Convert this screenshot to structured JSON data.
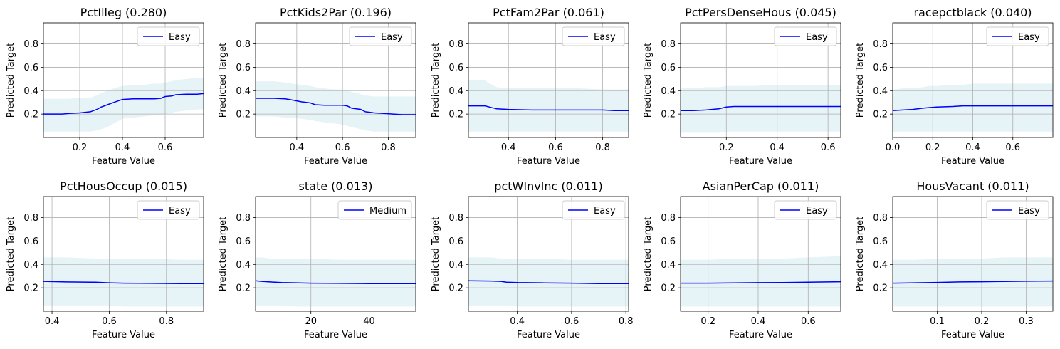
{
  "figure": {
    "ylabel": "Predicted Target",
    "xlabel": "Feature Value"
  },
  "chart_data": [
    {
      "type": "line",
      "title": "PctIlleg (0.280)",
      "xlabel": "Feature Value",
      "ylabel": "Predicted Target",
      "xlim": [
        0.03,
        0.78
      ],
      "ylim": [
        0.0,
        0.98
      ],
      "xticks": [
        0.2,
        0.4,
        0.6
      ],
      "xticklabels": [
        "0.2",
        "0.4",
        "0.6"
      ],
      "yticks": [
        0.2,
        0.4,
        0.6,
        0.8
      ],
      "yticklabels": [
        "0.2",
        "0.4",
        "0.6",
        "0.8"
      ],
      "grid": true,
      "legend_position": "upper right",
      "series": [
        {
          "name": "Easy",
          "color": "#0000ff",
          "x": [
            0.03,
            0.12,
            0.15,
            0.2,
            0.25,
            0.28,
            0.3,
            0.33,
            0.36,
            0.4,
            0.45,
            0.5,
            0.55,
            0.58,
            0.6,
            0.63,
            0.65,
            0.7,
            0.75,
            0.78
          ],
          "y": [
            0.2,
            0.2,
            0.205,
            0.21,
            0.22,
            0.24,
            0.26,
            0.28,
            0.3,
            0.325,
            0.33,
            0.33,
            0.33,
            0.335,
            0.35,
            0.355,
            0.365,
            0.37,
            0.37,
            0.375
          ]
        }
      ],
      "band": {
        "color": "#add8e6",
        "upper": [
          0.33,
          0.33,
          0.33,
          0.34,
          0.34,
          0.36,
          0.38,
          0.4,
          0.42,
          0.44,
          0.45,
          0.45,
          0.46,
          0.46,
          0.47,
          0.48,
          0.49,
          0.5,
          0.51,
          0.51
        ],
        "lower": [
          0.05,
          0.05,
          0.05,
          0.05,
          0.05,
          0.06,
          0.07,
          0.09,
          0.12,
          0.16,
          0.17,
          0.18,
          0.19,
          0.19,
          0.2,
          0.21,
          0.22,
          0.23,
          0.24,
          0.24
        ]
      }
    },
    {
      "type": "line",
      "title": "PctKids2Par (0.196)",
      "xlabel": "Feature Value",
      "ylabel": "Predicted Target",
      "xlim": [
        0.22,
        0.92
      ],
      "ylim": [
        0.0,
        0.98
      ],
      "xticks": [
        0.4,
        0.6,
        0.8
      ],
      "xticklabels": [
        "0.4",
        "0.6",
        "0.8"
      ],
      "yticks": [
        0.2,
        0.4,
        0.6,
        0.8
      ],
      "yticklabels": [
        "0.2",
        "0.4",
        "0.6",
        "0.8"
      ],
      "grid": true,
      "legend_position": "upper right",
      "series": [
        {
          "name": "Easy",
          "color": "#0000ff",
          "x": [
            0.22,
            0.3,
            0.35,
            0.38,
            0.42,
            0.46,
            0.48,
            0.52,
            0.56,
            0.6,
            0.62,
            0.64,
            0.66,
            0.68,
            0.7,
            0.74,
            0.78,
            0.82,
            0.86,
            0.92
          ],
          "y": [
            0.335,
            0.335,
            0.33,
            0.32,
            0.305,
            0.295,
            0.28,
            0.275,
            0.275,
            0.275,
            0.27,
            0.25,
            0.245,
            0.24,
            0.22,
            0.21,
            0.205,
            0.2,
            0.195,
            0.195
          ]
        }
      ],
      "band": {
        "color": "#add8e6",
        "upper": [
          0.48,
          0.48,
          0.47,
          0.46,
          0.45,
          0.44,
          0.43,
          0.42,
          0.41,
          0.41,
          0.4,
          0.39,
          0.38,
          0.37,
          0.36,
          0.35,
          0.35,
          0.35,
          0.35,
          0.35
        ],
        "lower": [
          0.18,
          0.18,
          0.17,
          0.17,
          0.16,
          0.15,
          0.14,
          0.13,
          0.12,
          0.11,
          0.1,
          0.09,
          0.08,
          0.07,
          0.06,
          0.05,
          0.05,
          0.05,
          0.05,
          0.05
        ]
      }
    },
    {
      "type": "line",
      "title": "PctFam2Par (0.061)",
      "xlabel": "Feature Value",
      "ylabel": "Predicted Target",
      "xlim": [
        0.23,
        0.91
      ],
      "ylim": [
        0.0,
        0.98
      ],
      "xticks": [
        0.4,
        0.6,
        0.8
      ],
      "xticklabels": [
        "0.4",
        "0.6",
        "0.8"
      ],
      "yticks": [
        0.2,
        0.4,
        0.6,
        0.8
      ],
      "yticklabels": [
        "0.2",
        "0.4",
        "0.6",
        "0.8"
      ],
      "grid": true,
      "legend_position": "upper right",
      "series": [
        {
          "name": "Easy",
          "color": "#0000ff",
          "x": [
            0.23,
            0.3,
            0.32,
            0.35,
            0.4,
            0.5,
            0.6,
            0.7,
            0.8,
            0.85,
            0.91
          ],
          "y": [
            0.27,
            0.27,
            0.26,
            0.245,
            0.24,
            0.235,
            0.235,
            0.235,
            0.235,
            0.23,
            0.23
          ]
        }
      ],
      "band": {
        "color": "#add8e6",
        "upper": [
          0.49,
          0.49,
          0.46,
          0.43,
          0.42,
          0.42,
          0.42,
          0.42,
          0.41,
          0.41,
          0.41
        ],
        "lower": [
          0.05,
          0.05,
          0.05,
          0.05,
          0.05,
          0.05,
          0.05,
          0.05,
          0.05,
          0.05,
          0.05
        ]
      }
    },
    {
      "type": "line",
      "title": "PctPersDenseHous (0.045)",
      "xlabel": "Feature Value",
      "ylabel": "Predicted Target",
      "xlim": [
        0.02,
        0.65
      ],
      "ylim": [
        0.0,
        0.98
      ],
      "xticks": [
        0.2,
        0.4,
        0.6
      ],
      "xticklabels": [
        "0.2",
        "0.4",
        "0.6"
      ],
      "yticks": [
        0.2,
        0.4,
        0.6,
        0.8
      ],
      "yticklabels": [
        "0.2",
        "0.4",
        "0.6",
        "0.8"
      ],
      "grid": true,
      "legend_position": "upper right",
      "series": [
        {
          "name": "Easy",
          "color": "#0000ff",
          "x": [
            0.02,
            0.07,
            0.12,
            0.17,
            0.2,
            0.23,
            0.3,
            0.4,
            0.5,
            0.6,
            0.65
          ],
          "y": [
            0.23,
            0.23,
            0.235,
            0.245,
            0.26,
            0.265,
            0.265,
            0.265,
            0.265,
            0.265,
            0.265
          ]
        }
      ],
      "band": {
        "color": "#add8e6",
        "upper": [
          0.42,
          0.42,
          0.43,
          0.43,
          0.44,
          0.44,
          0.44,
          0.45,
          0.45,
          0.45,
          0.45
        ],
        "lower": [
          0.04,
          0.04,
          0.04,
          0.04,
          0.05,
          0.05,
          0.05,
          0.05,
          0.05,
          0.05,
          0.05
        ]
      }
    },
    {
      "type": "line",
      "title": "racepctblack (0.040)",
      "xlabel": "Feature Value",
      "ylabel": "Predicted Target",
      "xlim": [
        0.0,
        0.8
      ],
      "ylim": [
        0.0,
        0.98
      ],
      "xticks": [
        0.0,
        0.2,
        0.4,
        0.6
      ],
      "xticklabels": [
        "0.0",
        "0.2",
        "0.4",
        "0.6"
      ],
      "yticks": [
        0.2,
        0.4,
        0.6,
        0.8
      ],
      "yticklabels": [
        "0.2",
        "0.4",
        "0.6",
        "0.8"
      ],
      "grid": true,
      "legend_position": "upper right",
      "series": [
        {
          "name": "Easy",
          "color": "#0000ff",
          "x": [
            0.0,
            0.05,
            0.1,
            0.15,
            0.18,
            0.22,
            0.3,
            0.35,
            0.4,
            0.5,
            0.6,
            0.7,
            0.8
          ],
          "y": [
            0.23,
            0.235,
            0.24,
            0.25,
            0.255,
            0.26,
            0.265,
            0.27,
            0.27,
            0.27,
            0.27,
            0.27,
            0.27
          ]
        }
      ],
      "band": {
        "color": "#add8e6",
        "upper": [
          0.41,
          0.42,
          0.42,
          0.43,
          0.44,
          0.44,
          0.45,
          0.45,
          0.46,
          0.46,
          0.46,
          0.46,
          0.46
        ],
        "lower": [
          0.05,
          0.05,
          0.05,
          0.05,
          0.05,
          0.05,
          0.05,
          0.05,
          0.05,
          0.05,
          0.05,
          0.05,
          0.05
        ]
      }
    },
    {
      "type": "line",
      "title": "PctHousOccup (0.015)",
      "xlabel": "Feature Value",
      "ylabel": "Predicted Target",
      "xlim": [
        0.37,
        0.93
      ],
      "ylim": [
        0.0,
        0.98
      ],
      "xticks": [
        0.4,
        0.6,
        0.8
      ],
      "xticklabels": [
        "0.4",
        "0.6",
        "0.8"
      ],
      "yticks": [
        0.2,
        0.4,
        0.6,
        0.8
      ],
      "yticklabels": [
        "0.2",
        "0.4",
        "0.6",
        "0.8"
      ],
      "grid": true,
      "legend_position": "upper right",
      "series": [
        {
          "name": "Easy",
          "color": "#0000ff",
          "x": [
            0.37,
            0.45,
            0.55,
            0.6,
            0.65,
            0.75,
            0.85,
            0.93
          ],
          "y": [
            0.255,
            0.25,
            0.248,
            0.243,
            0.24,
            0.238,
            0.236,
            0.236
          ]
        }
      ],
      "band": {
        "color": "#add8e6",
        "upper": [
          0.46,
          0.46,
          0.45,
          0.45,
          0.45,
          0.45,
          0.44,
          0.44
        ],
        "lower": [
          0.05,
          0.05,
          0.05,
          0.05,
          0.04,
          0.04,
          0.04,
          0.04
        ]
      }
    },
    {
      "type": "line",
      "title": "state (0.013)",
      "xlabel": "Feature Value",
      "ylabel": "Predicted Target",
      "xlim": [
        1,
        56
      ],
      "ylim": [
        0.0,
        0.98
      ],
      "xticks": [
        20,
        40
      ],
      "xticklabels": [
        "20",
        "40"
      ],
      "yticks": [
        0.2,
        0.4,
        0.6,
        0.8
      ],
      "yticklabels": [
        "0.2",
        "0.4",
        "0.6",
        "0.8"
      ],
      "grid": true,
      "legend_position": "upper right",
      "series": [
        {
          "name": "Medium",
          "color": "#0000ff",
          "x": [
            1,
            3,
            6,
            10,
            15,
            20,
            30,
            40,
            50,
            56
          ],
          "y": [
            0.26,
            0.255,
            0.25,
            0.245,
            0.243,
            0.24,
            0.238,
            0.236,
            0.236,
            0.236
          ]
        }
      ],
      "band": {
        "color": "#add8e6",
        "upper": [
          0.46,
          0.46,
          0.45,
          0.45,
          0.45,
          0.45,
          0.44,
          0.44,
          0.44,
          0.44
        ],
        "lower": [
          0.05,
          0.05,
          0.05,
          0.05,
          0.04,
          0.04,
          0.04,
          0.04,
          0.04,
          0.04
        ]
      }
    },
    {
      "type": "line",
      "title": "pctWInvInc (0.011)",
      "xlabel": "Feature Value",
      "ylabel": "Predicted Target",
      "xlim": [
        0.22,
        0.81
      ],
      "ylim": [
        0.0,
        0.98
      ],
      "xticks": [
        0.4,
        0.6,
        0.8
      ],
      "xticklabels": [
        "0.4",
        "0.6",
        "0.8"
      ],
      "yticks": [
        0.2,
        0.4,
        0.6,
        0.8
      ],
      "yticklabels": [
        "0.2",
        "0.4",
        "0.6",
        "0.8"
      ],
      "grid": true,
      "legend_position": "upper right",
      "series": [
        {
          "name": "Easy",
          "color": "#0000ff",
          "x": [
            0.22,
            0.3,
            0.34,
            0.36,
            0.4,
            0.5,
            0.6,
            0.7,
            0.81
          ],
          "y": [
            0.26,
            0.258,
            0.255,
            0.248,
            0.245,
            0.242,
            0.24,
            0.236,
            0.236
          ]
        }
      ],
      "band": {
        "color": "#add8e6",
        "upper": [
          0.46,
          0.46,
          0.45,
          0.45,
          0.45,
          0.45,
          0.44,
          0.44,
          0.44
        ],
        "lower": [
          0.05,
          0.05,
          0.05,
          0.05,
          0.04,
          0.04,
          0.04,
          0.04,
          0.04
        ]
      }
    },
    {
      "type": "line",
      "title": "AsianPerCap (0.011)",
      "xlabel": "Feature Value",
      "ylabel": "Predicted Target",
      "xlim": [
        0.09,
        0.73
      ],
      "ylim": [
        0.0,
        0.98
      ],
      "xticks": [
        0.2,
        0.4,
        0.6
      ],
      "xticklabels": [
        "0.2",
        "0.4",
        "0.6"
      ],
      "yticks": [
        0.2,
        0.4,
        0.6,
        0.8
      ],
      "yticklabels": [
        "0.2",
        "0.4",
        "0.6",
        "0.8"
      ],
      "grid": true,
      "legend_position": "upper right",
      "series": [
        {
          "name": "Easy",
          "color": "#0000ff",
          "x": [
            0.09,
            0.2,
            0.3,
            0.4,
            0.5,
            0.6,
            0.73
          ],
          "y": [
            0.24,
            0.24,
            0.242,
            0.244,
            0.245,
            0.248,
            0.252
          ]
        }
      ],
      "band": {
        "color": "#add8e6",
        "upper": [
          0.44,
          0.44,
          0.45,
          0.45,
          0.45,
          0.46,
          0.47
        ],
        "lower": [
          0.04,
          0.04,
          0.04,
          0.04,
          0.04,
          0.04,
          0.04
        ]
      }
    },
    {
      "type": "line",
      "title": "HousVacant (0.011)",
      "xlabel": "Feature Value",
      "ylabel": "Predicted Target",
      "xlim": [
        0.0,
        0.36
      ],
      "ylim": [
        0.0,
        0.98
      ],
      "xticks": [
        0.1,
        0.2,
        0.3
      ],
      "xticklabels": [
        "0.1",
        "0.2",
        "0.3"
      ],
      "yticks": [
        0.2,
        0.4,
        0.6,
        0.8
      ],
      "yticklabels": [
        "0.2",
        "0.4",
        "0.6",
        "0.8"
      ],
      "grid": true,
      "legend_position": "upper right",
      "series": [
        {
          "name": "Easy",
          "color": "#0000ff",
          "x": [
            0.0,
            0.05,
            0.1,
            0.15,
            0.2,
            0.25,
            0.3,
            0.36
          ],
          "y": [
            0.24,
            0.243,
            0.246,
            0.25,
            0.252,
            0.254,
            0.256,
            0.258
          ]
        }
      ],
      "band": {
        "color": "#add8e6",
        "upper": [
          0.44,
          0.44,
          0.45,
          0.45,
          0.45,
          0.46,
          0.46,
          0.46
        ],
        "lower": [
          0.04,
          0.04,
          0.04,
          0.04,
          0.04,
          0.04,
          0.04,
          0.04
        ]
      }
    }
  ]
}
